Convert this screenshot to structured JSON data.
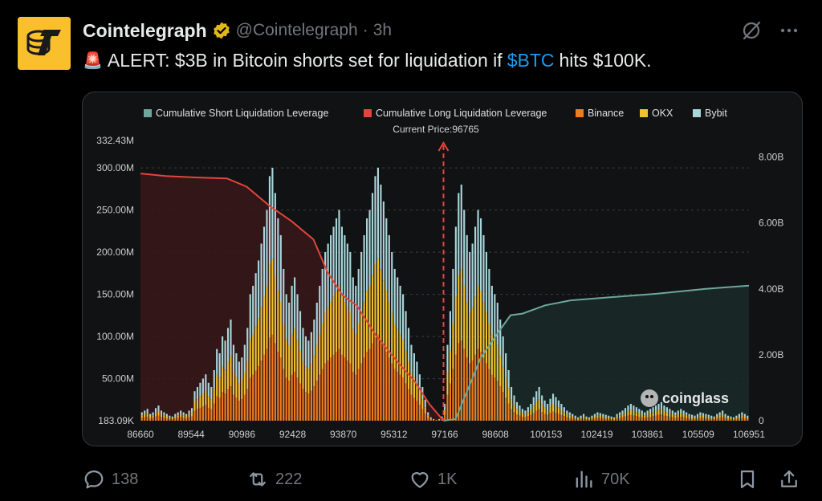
{
  "tweet": {
    "author_name": "Cointelegraph",
    "handle": "@Cointelegraph",
    "separator": "·",
    "time": "3h",
    "alert_emoji": "🚨",
    "text_before": "ALERT: $3B in Bitcoin shorts set for liquidation if",
    "cashtag": "$BTC",
    "text_after": "hits $100K."
  },
  "icons": {
    "verified": "verified-badge-icon",
    "grok": "grok-icon",
    "more": "more-icon",
    "reply": "reply-icon",
    "retweet": "retweet-icon",
    "like": "like-icon",
    "views": "views-icon",
    "bookmark": "bookmark-icon",
    "share": "share-icon"
  },
  "actions": {
    "replies": "138",
    "reposts": "222",
    "likes": "1K",
    "views": "70K"
  },
  "colors": {
    "cashtag": "#1d9bf0",
    "short_cum": "#6ea69b",
    "long_cum": "#e0463c",
    "binance": "#f07d1c",
    "okx": "#f2c22e",
    "bybit": "#a9d5da"
  },
  "chart_data": {
    "type": "bar",
    "legend": [
      {
        "name": "Cumulative Short Liquidation Leverage",
        "color": "#6ea69b"
      },
      {
        "name": "Cumulative Long Liquidation Leverage",
        "color": "#e0463c"
      },
      {
        "name": "Binance",
        "color": "#f07d1c"
      },
      {
        "name": "OKX",
        "color": "#f2c22e"
      },
      {
        "name": "Bybit",
        "color": "#a9d5da"
      }
    ],
    "legend_placement": "top",
    "annotation": "Current Price:96765",
    "current_price": 96765,
    "watermark": "coinglass",
    "x_ticks": [
      "86660",
      "89544",
      "90986",
      "92428",
      "93870",
      "95312",
      "97166",
      "98608",
      "100153",
      "102419",
      "103861",
      "105509",
      "106951"
    ],
    "y_left_ticks": [
      "332.43M",
      "300.00M",
      "250.00M",
      "200.00M",
      "150.00M",
      "100.00M",
      "50.00M",
      "183.09K"
    ],
    "y_left_values": [
      332.43,
      300,
      250,
      200,
      150,
      100,
      50,
      0.18
    ],
    "y_left_range": [
      0.18,
      332.43
    ],
    "y_right_ticks": [
      "8.00B",
      "6.00B",
      "4.00B",
      "2.00B",
      "0"
    ],
    "y_right_values": [
      8,
      6,
      4,
      2,
      0
    ],
    "y_right_range": [
      0,
      8.5
    ],
    "price_range": [
      86660,
      106951
    ],
    "long_cum_curve": [
      [
        86660,
        7.5
      ],
      [
        87500,
        7.42
      ],
      [
        88500,
        7.38
      ],
      [
        89544,
        7.35
      ],
      [
        90200,
        7.1
      ],
      [
        90986,
        6.5
      ],
      [
        91700,
        6.05
      ],
      [
        92428,
        5.5
      ],
      [
        92900,
        4.5
      ],
      [
        93400,
        3.8
      ],
      [
        93870,
        3.5
      ],
      [
        94500,
        2.6
      ],
      [
        95312,
        1.7
      ],
      [
        95800,
        1.2
      ],
      [
        96300,
        0.5
      ],
      [
        96765,
        0.0
      ]
    ],
    "short_cum_curve": [
      [
        96765,
        0.0
      ],
      [
        97166,
        0.05
      ],
      [
        97600,
        1.0
      ],
      [
        98000,
        1.9
      ],
      [
        98608,
        2.7
      ],
      [
        99000,
        3.2
      ],
      [
        99400,
        3.25
      ],
      [
        100153,
        3.5
      ],
      [
        101000,
        3.65
      ],
      [
        102419,
        3.75
      ],
      [
        103861,
        3.85
      ],
      [
        105509,
        4.0
      ],
      [
        106951,
        4.1
      ]
    ],
    "bar_totals_M": [
      10,
      12,
      14,
      8,
      10,
      15,
      18,
      12,
      10,
      8,
      6,
      5,
      8,
      10,
      12,
      10,
      8,
      12,
      15,
      35,
      40,
      45,
      50,
      55,
      45,
      40,
      60,
      85,
      80,
      100,
      95,
      110,
      120,
      90,
      80,
      70,
      75,
      90,
      110,
      150,
      160,
      175,
      190,
      210,
      230,
      250,
      290,
      300,
      270,
      240,
      220,
      180,
      150,
      140,
      160,
      170,
      150,
      130,
      110,
      100,
      95,
      105,
      120,
      140,
      160,
      180,
      200,
      210,
      220,
      230,
      240,
      250,
      230,
      220,
      210,
      200,
      170,
      160,
      180,
      200,
      220,
      240,
      250,
      270,
      290,
      300,
      280,
      260,
      240,
      220,
      200,
      180,
      170,
      160,
      150,
      130,
      110,
      90,
      80,
      70,
      55,
      40,
      25,
      10,
      4,
      2,
      1,
      2,
      5,
      20,
      90,
      130,
      180,
      230,
      270,
      280,
      250,
      220,
      200,
      210,
      230,
      250,
      240,
      220,
      200,
      180,
      160,
      150,
      140,
      120,
      100,
      80,
      60,
      40,
      30,
      22,
      18,
      14,
      12,
      16,
      20,
      28,
      35,
      40,
      30,
      24,
      20,
      26,
      32,
      28,
      24,
      20,
      16,
      12,
      10,
      8,
      6,
      4,
      6,
      8,
      5,
      4,
      6,
      8,
      10,
      9,
      8,
      7,
      6,
      5,
      4,
      8,
      10,
      12,
      15,
      18,
      20,
      18,
      16,
      14,
      12,
      10,
      12,
      14,
      16,
      18,
      20,
      22,
      18,
      16,
      14,
      12,
      10,
      12,
      14,
      12,
      10,
      8,
      7,
      6,
      8,
      10,
      9,
      8,
      7,
      6,
      5,
      8,
      10,
      12,
      8,
      6,
      5,
      4,
      6,
      8,
      10,
      8,
      6
    ]
  }
}
